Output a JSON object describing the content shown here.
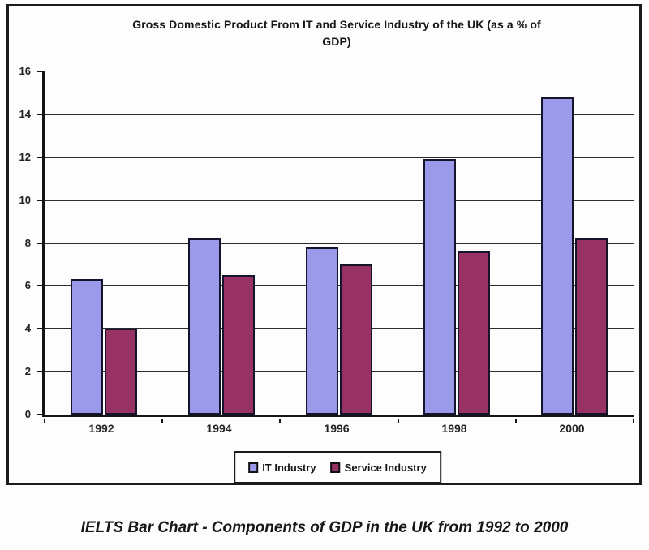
{
  "window": {
    "background": "#fdfdfd"
  },
  "chart": {
    "title_lines": [
      "Gross Domestic Product From IT and Service Industry of the UK (as a % of",
      "GDP)"
    ],
    "border_color": "#1b1b1b",
    "text_color": "#1c1c1c",
    "gridline_color": "#2b2b2b"
  },
  "chart_data": {
    "type": "bar",
    "title": "Gross Domestic Product From IT and Service Industry of the UK (as a % of GDP)",
    "categories": [
      "1992",
      "1994",
      "1996",
      "1998",
      "2000"
    ],
    "series": [
      {
        "name": "IT Industry",
        "color": "#9b99ea",
        "border_color": "#14142a",
        "values": [
          6.3,
          8.2,
          7.8,
          11.9,
          14.8
        ]
      },
      {
        "name": "Service Industry",
        "color": "#983264",
        "border_color": "#14142a",
        "values": [
          4.0,
          6.5,
          7.0,
          7.6,
          8.2
        ]
      }
    ],
    "xlabel": "",
    "ylabel": "",
    "ylim": [
      0,
      16
    ],
    "yticks": [
      0,
      2,
      4,
      6,
      8,
      10,
      12,
      14,
      16
    ],
    "grid": true,
    "legend_position": "bottom-center"
  },
  "caption": "IELTS Bar Chart - Components of GDP in the UK from 1992 to 2000"
}
